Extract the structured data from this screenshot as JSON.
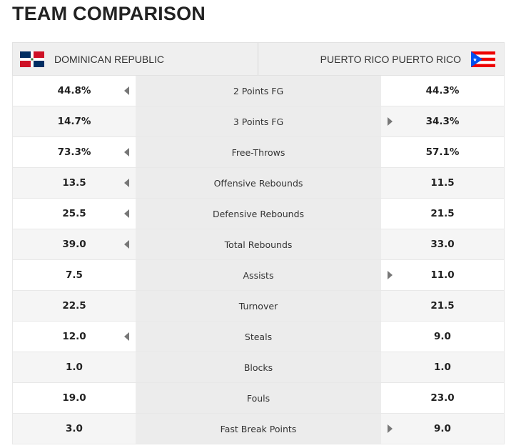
{
  "title": "TEAM COMPARISON",
  "teams": {
    "left": {
      "name": "DOMINICAN REPUBLIC",
      "flag_icon": "dominican-republic-flag-icon"
    },
    "right": {
      "name": "PUERTO RICO PUERTO RICO",
      "flag_icon": "puerto-rico-flag-icon"
    }
  },
  "colors": {
    "dr_blue": "#002D62",
    "dr_red": "#CE1126",
    "pr_blue": "#0050F0",
    "pr_red": "#ED0000"
  },
  "rows": [
    {
      "stat": "2 Points FG",
      "left": "44.8%",
      "right": "44.3%",
      "leader": "left"
    },
    {
      "stat": "3 Points FG",
      "left": "14.7%",
      "right": "34.3%",
      "leader": "right"
    },
    {
      "stat": "Free-Throws",
      "left": "73.3%",
      "right": "57.1%",
      "leader": "left"
    },
    {
      "stat": "Offensive Rebounds",
      "left": "13.5",
      "right": "11.5",
      "leader": "left"
    },
    {
      "stat": "Defensive Rebounds",
      "left": "25.5",
      "right": "21.5",
      "leader": "left"
    },
    {
      "stat": "Total Rebounds",
      "left": "39.0",
      "right": "33.0",
      "leader": "left"
    },
    {
      "stat": "Assists",
      "left": "7.5",
      "right": "11.0",
      "leader": "right"
    },
    {
      "stat": "Turnover",
      "left": "22.5",
      "right": "21.5",
      "leader": "none"
    },
    {
      "stat": "Steals",
      "left": "12.0",
      "right": "9.0",
      "leader": "left"
    },
    {
      "stat": "Blocks",
      "left": "1.0",
      "right": "1.0",
      "leader": "none"
    },
    {
      "stat": "Fouls",
      "left": "19.0",
      "right": "23.0",
      "leader": "none"
    },
    {
      "stat": "Fast Break Points",
      "left": "3.0",
      "right": "9.0",
      "leader": "right"
    }
  ]
}
